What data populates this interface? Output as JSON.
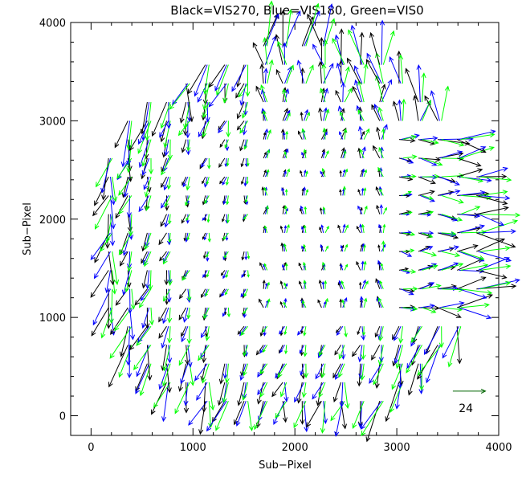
{
  "chart_data": {
    "type": "quiver",
    "title": "Black=VIS270, Blue=VIS180, Green=VIS0",
    "xlabel": "Sub−Pixel",
    "ylabel": "Sub−Pixel",
    "xlim": [
      -200,
      4000
    ],
    "ylim": [
      -200,
      4000
    ],
    "xticks": [
      0,
      1000,
      2000,
      3000,
      4000
    ],
    "yticks": [
      0,
      1000,
      2000,
      3000,
      4000
    ],
    "xtick_labels": [
      "0",
      "1000",
      "2000",
      "3000",
      "4000"
    ],
    "ytick_labels": [
      "0",
      "1000",
      "2000",
      "3000",
      "4000"
    ],
    "grid": false,
    "key": {
      "label": "24",
      "x": 3550,
      "y": 250,
      "dx": 320,
      "dy": 0,
      "color": "#006400"
    },
    "field_model": {
      "center": [
        1950,
        1850
      ],
      "radius": 1950,
      "grid_step": 190,
      "base_length": 70,
      "edge_length": 320
    },
    "series": [
      {
        "name": "VIS270",
        "color": "#000000",
        "offset": [
          -18,
          0
        ]
      },
      {
        "name": "VIS180",
        "color": "#0000ff",
        "offset": [
          0,
          0
        ]
      },
      {
        "name": "VIS0",
        "color": "#00ff00",
        "offset": [
          18,
          0
        ]
      }
    ]
  }
}
